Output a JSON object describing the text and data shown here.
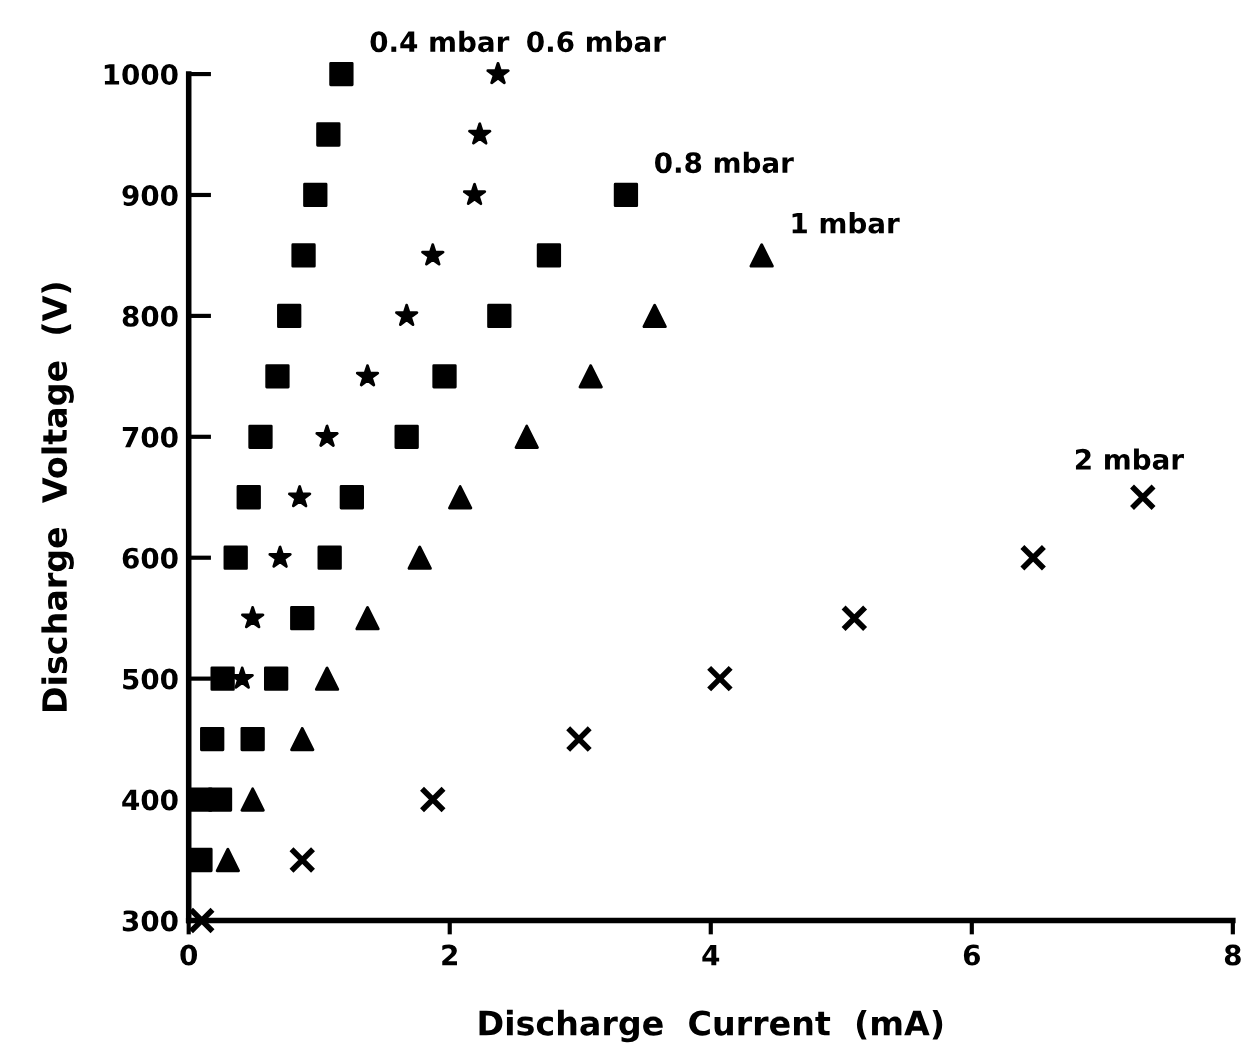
{
  "chart_data": {
    "type": "scatter",
    "xlabel": "Discharge  Current  (mA)",
    "ylabel": "Discharge  Voltage  (V)",
    "xlim": [
      0,
      8
    ],
    "ylim": [
      300,
      1000
    ],
    "xticks": [
      0,
      2,
      4,
      6,
      8
    ],
    "yticks": [
      300,
      400,
      500,
      600,
      700,
      800,
      900,
      1000
    ],
    "grid": false,
    "legend": false,
    "series": [
      {
        "name": "0.4 mbar",
        "color": "#000000",
        "marker": "square",
        "x": [
          1.17,
          1.07,
          0.97,
          0.88,
          0.77,
          0.68,
          0.55,
          0.46,
          0.36,
          0.26,
          0.18,
          0.09
        ],
        "values": [
          1000,
          950,
          900,
          850,
          800,
          750,
          700,
          650,
          600,
          500,
          450,
          400
        ]
      },
      {
        "name": "0.6 mbar",
        "color": "#000000",
        "marker": "star",
        "x": [
          2.37,
          2.23,
          2.19,
          1.87,
          1.67,
          1.37,
          1.06,
          0.85,
          0.7,
          0.49,
          0.41
        ],
        "values": [
          1000,
          950,
          900,
          850,
          800,
          750,
          700,
          650,
          600,
          550,
          500
        ]
      },
      {
        "name": "0.8 mbar",
        "color": "#000000",
        "marker": "square",
        "x": [
          3.35,
          2.76,
          2.38,
          1.96,
          1.67,
          1.25,
          1.08,
          0.87,
          0.67,
          0.49,
          0.24,
          0.09
        ],
        "values": [
          900,
          850,
          800,
          750,
          700,
          650,
          600,
          550,
          500,
          450,
          400,
          350
        ]
      },
      {
        "name": "1 mbar",
        "color": "#000000",
        "marker": "triangle",
        "x": [
          4.39,
          3.57,
          3.08,
          2.59,
          2.08,
          1.77,
          1.37,
          1.06,
          0.87,
          0.49,
          0.3
        ],
        "values": [
          850,
          800,
          750,
          700,
          650,
          600,
          550,
          500,
          450,
          400,
          350
        ]
      },
      {
        "name": "2 mbar",
        "color": "#000000",
        "marker": "cross",
        "x": [
          7.31,
          6.47,
          5.1,
          4.07,
          2.99,
          1.87,
          0.87,
          0.1
        ],
        "values": [
          650,
          600,
          550,
          500,
          450,
          400,
          350,
          300
        ]
      }
    ]
  }
}
